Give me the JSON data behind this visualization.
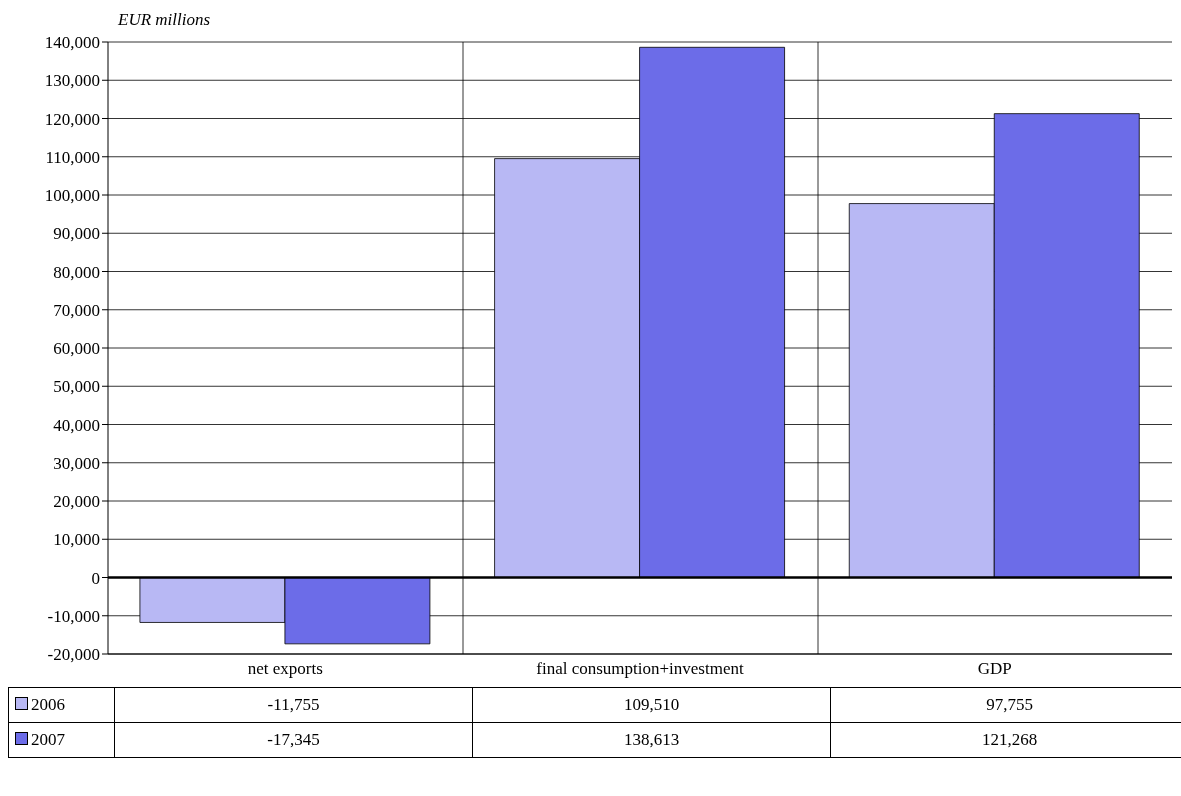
{
  "chart_data": {
    "type": "bar",
    "ylabel": "EUR millions",
    "categories": [
      "net exports",
      "final consumption+investment",
      "GDP"
    ],
    "series": [
      {
        "name": "2006",
        "color": "#b8b8f4",
        "values": [
          -11755,
          109510,
          97755
        ],
        "value_labels": [
          "-11,755",
          "109,510",
          "97,755"
        ]
      },
      {
        "name": "2007",
        "color": "#6c6ce8",
        "values": [
          -17345,
          138613,
          121268
        ],
        "value_labels": [
          "-17,345",
          "138,613",
          "121,268"
        ]
      }
    ],
    "ylim": [
      -20000,
      140000
    ],
    "yticks": [
      {
        "value": -20000,
        "label": "-20,000"
      },
      {
        "value": -10000,
        "label": "-10,000"
      },
      0,
      {
        "value": 10000,
        "label": "10,000"
      },
      {
        "value": 20000,
        "label": "20,000"
      },
      {
        "value": 30000,
        "label": "30,000"
      },
      {
        "value": 40000,
        "label": "40,000"
      },
      {
        "value": 50000,
        "label": "50,000"
      },
      {
        "value": 60000,
        "label": "60,000"
      },
      {
        "value": 70000,
        "label": "70,000"
      },
      {
        "value": 80000,
        "label": "80,000"
      },
      {
        "value": 90000,
        "label": "90,000"
      },
      {
        "value": 100000,
        "label": "100,000"
      },
      {
        "value": 110000,
        "label": "110,000"
      },
      {
        "value": 120000,
        "label": "120,000"
      },
      {
        "value": 130000,
        "label": "130,000"
      },
      {
        "value": 140000,
        "label": "140,000"
      }
    ],
    "grid": true,
    "legend": "bottom left"
  }
}
